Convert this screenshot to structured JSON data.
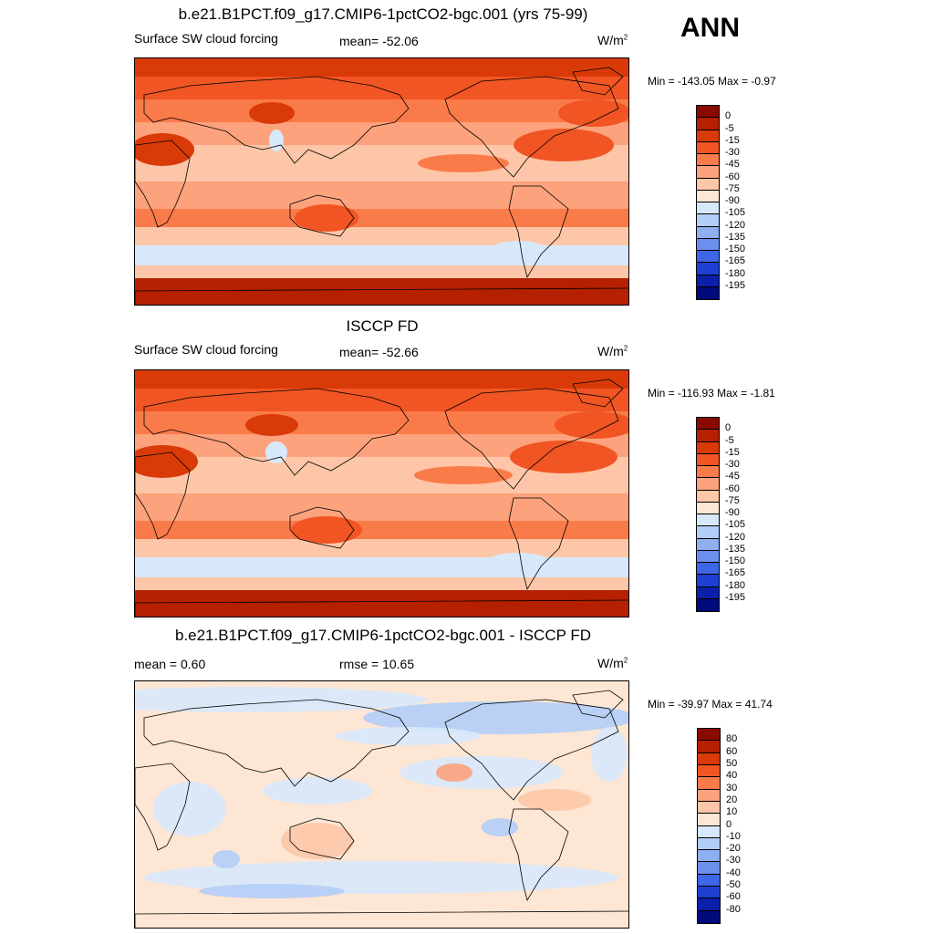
{
  "season": "ANN",
  "panels": [
    {
      "title": "b.e21.B1PCT.f09_g17.CMIP6-1pctCO2-bgc.001 (yrs 75-99)",
      "left_label": "Surface SW cloud forcing",
      "center_label": "mean= -52.06",
      "units": "W/m",
      "units_sup": "2",
      "minmax": "Min = -143.05 Max =  -0.97",
      "kind": "abs",
      "colorbar": {
        "labels": [
          "0",
          "-5",
          "-15",
          "-30",
          "-45",
          "-60",
          "-75",
          "-90",
          "-105",
          "-120",
          "-135",
          "-150",
          "-165",
          "-180",
          "-195"
        ],
        "colors": [
          "#8b0a00",
          "#b52000",
          "#d93a08",
          "#f05523",
          "#fa7b4a",
          "#fca27c",
          "#fdc6a8",
          "#fde6d3",
          "#d8e8fb",
          "#b2cdf7",
          "#8eb0f2",
          "#6a8fec",
          "#3f66e6",
          "#1d40d2",
          "#0c1fa8",
          "#020b7a"
        ]
      }
    },
    {
      "title": "ISCCP FD",
      "left_label": "Surface SW cloud forcing",
      "center_label": "mean= -52.66",
      "units": "W/m",
      "units_sup": "2",
      "minmax": "Min = -116.93 Max =  -1.81",
      "kind": "abs",
      "colorbar": {
        "labels": [
          "0",
          "-5",
          "-15",
          "-30",
          "-45",
          "-60",
          "-75",
          "-90",
          "-105",
          "-120",
          "-135",
          "-150",
          "-165",
          "-180",
          "-195"
        ],
        "colors": [
          "#8b0a00",
          "#b52000",
          "#d93a08",
          "#f05523",
          "#fa7b4a",
          "#fca27c",
          "#fdc6a8",
          "#fde6d3",
          "#d8e8fb",
          "#b2cdf7",
          "#8eb0f2",
          "#6a8fec",
          "#3f66e6",
          "#1d40d2",
          "#0c1fa8",
          "#020b7a"
        ]
      }
    },
    {
      "title": "b.e21.B1PCT.f09_g17.CMIP6-1pctCO2-bgc.001 - ISCCP FD",
      "left_label": "mean =   0.60",
      "center_label": "rmse =  10.65",
      "units": "W/m",
      "units_sup": "2",
      "minmax": "Min = -39.97 Max =  41.74",
      "kind": "diff",
      "colorbar": {
        "labels": [
          "80",
          "60",
          "50",
          "40",
          "30",
          "20",
          "10",
          "0",
          "-10",
          "-20",
          "-30",
          "-40",
          "-50",
          "-60",
          "-80"
        ],
        "colors": [
          "#8b0a00",
          "#b52000",
          "#d93a08",
          "#f05523",
          "#fa7b4a",
          "#fca27c",
          "#fdc6a8",
          "#fde6d3",
          "#d8e8fb",
          "#b2cdf7",
          "#8eb0f2",
          "#6a8fec",
          "#3f66e6",
          "#1d40d2",
          "#0c1fa8",
          "#020b7a"
        ]
      }
    }
  ]
}
